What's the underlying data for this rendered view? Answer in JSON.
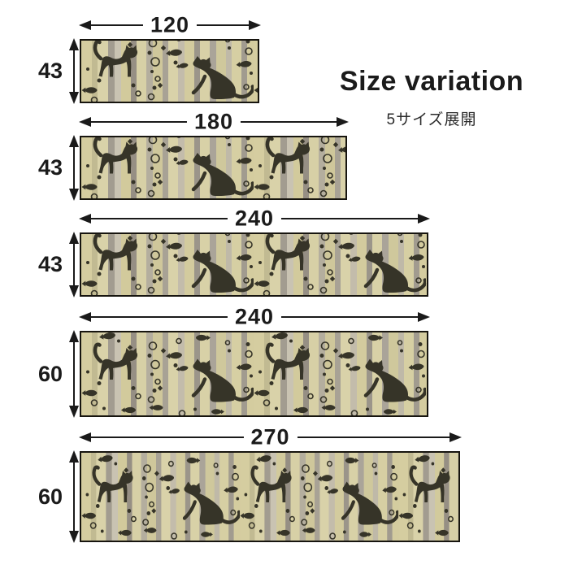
{
  "title": "Size variation",
  "subtitle": "5サイズ展開",
  "sizes": [
    {
      "id": "120x43",
      "width_cm": "120",
      "height_cm": "43"
    },
    {
      "id": "180x43",
      "width_cm": "180",
      "height_cm": "43"
    },
    {
      "id": "240x43",
      "width_cm": "240",
      "height_cm": "43"
    },
    {
      "id": "240x60",
      "width_cm": "240",
      "height_cm": "60"
    },
    {
      "id": "270x60",
      "width_cm": "270",
      "height_cm": "60"
    }
  ],
  "colors": {
    "background": "#ffffff",
    "dimension_lines": "#1a1a1a",
    "text": "#1b1b1b",
    "mat_border": "#17150f",
    "motif": "#363428"
  },
  "mat_pattern": {
    "motifs": [
      "cat-arched",
      "cat-sitting",
      "fish",
      "bubble-ring",
      "bubble-dot",
      "diamond"
    ],
    "stripes": [
      {
        "w": 13,
        "c": "#d5cda0"
      },
      {
        "w": 7,
        "c": "#c1ba92"
      },
      {
        "w": 13,
        "c": "#d9d2a9"
      },
      {
        "w": 8,
        "c": "#a29c90"
      },
      {
        "w": 8,
        "c": "#c9c3b2"
      },
      {
        "w": 12,
        "c": "#d2ca9c"
      },
      {
        "w": 7,
        "c": "#968f84"
      },
      {
        "w": 12,
        "c": "#d7d0a6"
      },
      {
        "w": 8,
        "c": "#b4ae9e"
      },
      {
        "w": 12,
        "c": "#cfc79b"
      },
      {
        "w": 7,
        "c": "#a8a295"
      },
      {
        "w": 12,
        "c": "#d9d2a9"
      },
      {
        "w": 8,
        "c": "#c3bcab"
      },
      {
        "w": 12,
        "c": "#d3cb9e"
      },
      {
        "w": 7,
        "c": "#9b958a"
      },
      {
        "w": 12,
        "c": "#d8d1a7"
      },
      {
        "w": 8,
        "c": "#aaa499"
      },
      {
        "w": 12,
        "c": "#cfc89c"
      },
      {
        "w": 7,
        "c": "#bfb9a8"
      },
      {
        "w": 12,
        "c": "#d6cfa3"
      },
      {
        "w": 7,
        "c": "#a19b8f"
      },
      {
        "w": 8,
        "c": "#d4cc9f"
      }
    ]
  }
}
